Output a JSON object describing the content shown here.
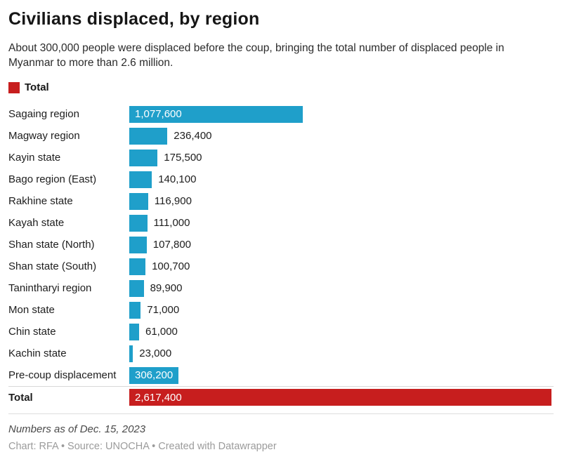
{
  "header": {
    "title": "Civilians displaced, by region",
    "subtitle": "About 300,000 people were displaced before the coup, bringing the total number of displaced people in Myanmar to more than 2.6 million."
  },
  "legend": {
    "label": "Total",
    "color": "#c71e1e"
  },
  "chart_data": {
    "type": "bar",
    "orientation": "horizontal",
    "title": "Civilians displaced, by region",
    "categories": [
      "Sagaing region",
      "Magway region",
      "Kayin state",
      "Bago region (East)",
      "Rakhine state",
      "Kayah state",
      "Shan state (North)",
      "Shan state (South)",
      "Tanintharyi region",
      "Mon state",
      "Chin state",
      "Kachin state",
      "Pre-coup displacement",
      "Total"
    ],
    "values": [
      1077600,
      236400,
      175500,
      140100,
      116900,
      111000,
      107800,
      100700,
      89900,
      71000,
      61000,
      23000,
      306200,
      2617400
    ],
    "value_labels": [
      "1,077,600",
      "236,400",
      "175,500",
      "140,100",
      "116,900",
      "111,000",
      "107,800",
      "100,700",
      "89,900",
      "71,000",
      "61,000",
      "23,000",
      "306,200",
      "2,617,400"
    ],
    "label_inside": [
      true,
      false,
      false,
      false,
      false,
      false,
      false,
      false,
      false,
      false,
      false,
      false,
      true,
      true
    ],
    "max_value": 2617400,
    "bar_color": "#1f9fca",
    "total_color": "#c71e1e",
    "xlim": [
      0,
      2617400
    ],
    "grid": false,
    "legend_position": "top-left"
  },
  "footer": {
    "note": "Numbers as of Dec. 15, 2023",
    "byline": "Chart: RFA • Source: UNOCHA • Created with Datawrapper"
  }
}
